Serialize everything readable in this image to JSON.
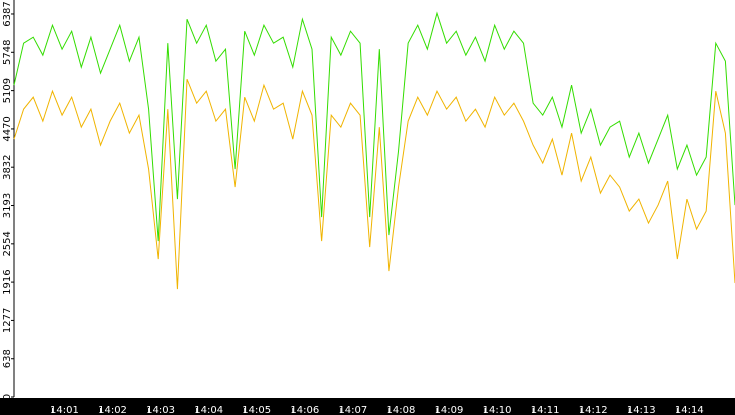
{
  "chart_data": {
    "type": "line",
    "x": [
      0.2,
      0.4,
      0.6,
      0.8,
      1.0,
      1.2,
      1.4,
      1.6,
      1.8,
      2.0,
      2.2,
      2.4,
      2.6,
      2.8,
      3.0,
      3.2,
      3.4,
      3.6,
      3.8,
      4.0,
      4.2,
      4.4,
      4.6,
      4.8,
      5.0,
      5.2,
      5.4,
      5.6,
      5.8,
      6.0,
      6.2,
      6.4,
      6.6,
      6.8,
      7.0,
      7.2,
      7.4,
      7.6,
      7.8,
      8.0,
      8.2,
      8.4,
      8.6,
      8.8,
      9.0,
      9.2,
      9.4,
      9.6,
      9.8,
      10.0,
      10.2,
      10.4,
      10.6,
      10.8,
      11.0,
      11.2,
      11.4,
      11.6,
      11.8,
      12.0,
      12.2,
      12.4,
      12.6,
      12.8,
      13.0,
      13.2,
      13.4,
      13.6,
      13.8,
      14.0,
      14.2,
      14.4,
      14.6,
      14.8,
      15.0,
      15.2
    ],
    "series": [
      {
        "color": "#f0b400",
        "values": [
          4300,
          4800,
          5000,
          4600,
          5100,
          4700,
          5000,
          4500,
          4800,
          4200,
          4600,
          4900,
          4400,
          4700,
          3800,
          2300,
          4800,
          1800,
          5300,
          4900,
          5100,
          4600,
          4800,
          3500,
          5000,
          4600,
          5200,
          4800,
          4900,
          4300,
          5100,
          4700,
          2600,
          4700,
          4500,
          4900,
          4700,
          2500,
          4500,
          2100,
          3500,
          4600,
          5000,
          4700,
          5100,
          4800,
          5000,
          4600,
          4800,
          4500,
          5000,
          4700,
          4900,
          4600,
          4200,
          3900,
          4300,
          3700,
          4400,
          3600,
          4000,
          3400,
          3700,
          3500,
          3100,
          3300,
          2900,
          3200,
          3600,
          2300,
          3300,
          2800,
          3100,
          5100,
          4400,
          1900
        ]
      },
      {
        "color": "#33dd00",
        "values": [
          5200,
          5900,
          6000,
          5700,
          6200,
          5800,
          6100,
          5500,
          6000,
          5400,
          5800,
          6200,
          5600,
          6000,
          4800,
          2600,
          5900,
          3300,
          6300,
          5900,
          6200,
          5600,
          5800,
          3800,
          6100,
          5700,
          6200,
          5900,
          6000,
          5500,
          6300,
          5800,
          3000,
          6000,
          5700,
          6100,
          5900,
          3000,
          5800,
          2700,
          4100,
          5900,
          6200,
          5800,
          6400,
          5900,
          6100,
          5700,
          6000,
          5600,
          6200,
          5800,
          6100,
          5900,
          4900,
          4700,
          5000,
          4500,
          5200,
          4400,
          4800,
          4200,
          4500,
          4600,
          4000,
          4400,
          3900,
          4300,
          4700,
          3800,
          4200,
          3700,
          4000,
          5900,
          5600,
          3200
        ]
      }
    ],
    "xlim": [
      0.2,
      15.2
    ],
    "xticks": [
      {
        "value": 1,
        "label": "14:01"
      },
      {
        "value": 2,
        "label": "14:02"
      },
      {
        "value": 3,
        "label": "14:03"
      },
      {
        "value": 4,
        "label": "14:04"
      },
      {
        "value": 5,
        "label": "14:05"
      },
      {
        "value": 6,
        "label": "14:06"
      },
      {
        "value": 7,
        "label": "14:07"
      },
      {
        "value": 8,
        "label": "14:08"
      },
      {
        "value": 9,
        "label": "14:09"
      },
      {
        "value": 10,
        "label": "14:10"
      },
      {
        "value": 11,
        "label": "14:11"
      },
      {
        "value": 12,
        "label": "14:12"
      },
      {
        "value": 13,
        "label": "14:13"
      },
      {
        "value": 14,
        "label": "14:14"
      }
    ],
    "ylim": [
      0,
      6620
    ],
    "yticks": [
      0,
      638,
      1277,
      1916,
      2554,
      3193,
      3832,
      4470,
      5109,
      5748,
      6387
    ]
  }
}
